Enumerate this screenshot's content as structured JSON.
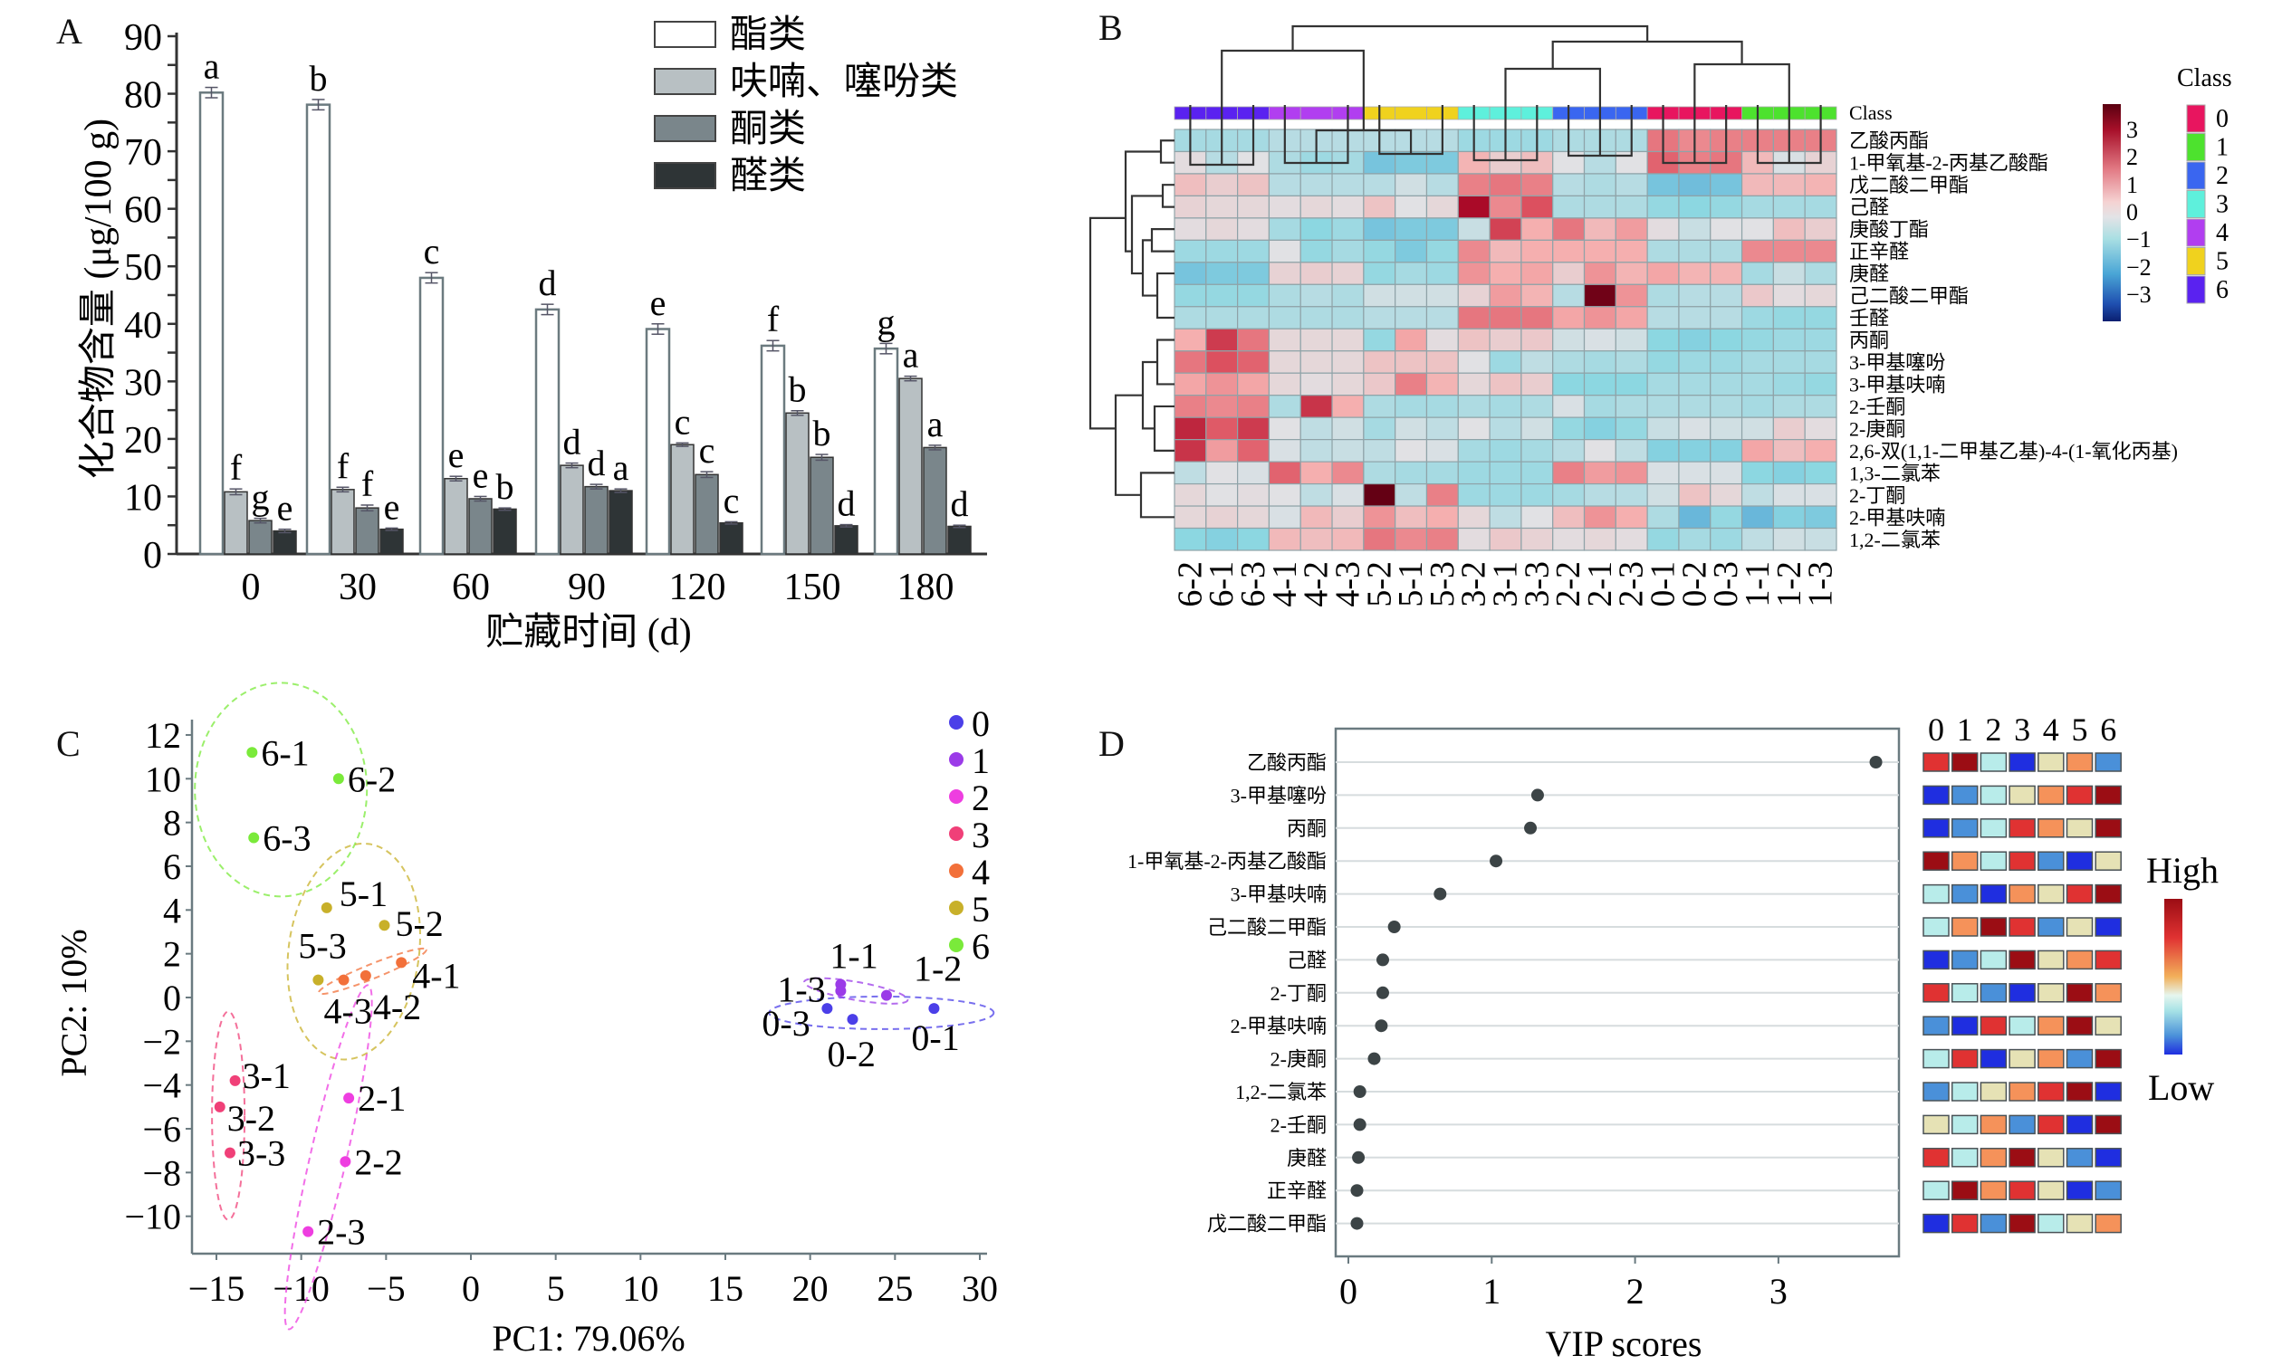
{
  "panels": {
    "A": "A",
    "B": "B",
    "C": "C",
    "D": "D"
  },
  "chart_data": [
    {
      "panel": "A",
      "type": "bar",
      "ylabel": "化合物含量 (μg/100 g)",
      "xlabel": "贮藏时间 (d)",
      "ylim": [
        0,
        90
      ],
      "yticks": [
        0,
        10,
        20,
        30,
        40,
        50,
        60,
        70,
        80,
        90
      ],
      "categories": [
        "0",
        "30",
        "60",
        "90",
        "120",
        "150",
        "180"
      ],
      "legend_position": "top-right",
      "series": [
        {
          "name": "酯类",
          "color": "#ffffff",
          "values": [
            80.2,
            78.1,
            48.0,
            42.5,
            39.1,
            36.2,
            35.7
          ],
          "errors": [
            0.9,
            0.9,
            0.9,
            0.9,
            0.9,
            0.9,
            0.9
          ],
          "letters": [
            "a",
            "b",
            "c",
            "d",
            "e",
            "f",
            "g"
          ]
        },
        {
          "name": "呋喃、噻吩类",
          "color": "#b8c0c3",
          "values": [
            10.8,
            11.2,
            13.1,
            15.4,
            19.0,
            24.5,
            30.5
          ],
          "errors": [
            0.5,
            0.4,
            0.4,
            0.4,
            0.3,
            0.4,
            0.4
          ],
          "letters": [
            "f",
            "f",
            "e",
            "d",
            "c",
            "b",
            "a"
          ]
        },
        {
          "name": "酮类",
          "color": "#7a868b",
          "values": [
            5.8,
            8.0,
            9.6,
            11.7,
            13.8,
            16.8,
            18.5
          ],
          "errors": [
            0.4,
            0.5,
            0.4,
            0.4,
            0.5,
            0.5,
            0.4
          ],
          "letters": [
            "g",
            "f",
            "e",
            "d",
            "c",
            "b",
            "a"
          ]
        },
        {
          "name": "醛类",
          "color": "#2e3436",
          "values": [
            4.0,
            4.3,
            7.8,
            11.0,
            5.4,
            4.9,
            4.8
          ],
          "errors": [
            0.3,
            0.2,
            0.2,
            0.3,
            0.2,
            0.2,
            0.2
          ],
          "letters": [
            "e",
            "e",
            "b",
            "a",
            "c",
            "d",
            "d"
          ]
        }
      ]
    },
    {
      "panel": "B",
      "type": "heatmap",
      "title": "",
      "class_label": "Class",
      "legend_title": "Class",
      "colorbar_ticks": [
        3,
        2,
        1,
        0,
        -1,
        -2,
        -3
      ],
      "classes": [
        {
          "label": "0",
          "color": "#e8155f"
        },
        {
          "label": "1",
          "color": "#4de22e"
        },
        {
          "label": "2",
          "color": "#3a66f0"
        },
        {
          "label": "3",
          "color": "#5ef0dc"
        },
        {
          "label": "4",
          "color": "#b13ef0"
        },
        {
          "label": "5",
          "color": "#f0d21e"
        },
        {
          "label": "6",
          "color": "#5a22f0"
        }
      ],
      "columns": [
        "6-2",
        "6-1",
        "6-3",
        "4-1",
        "4-2",
        "4-3",
        "5-2",
        "5-1",
        "5-3",
        "3-2",
        "3-1",
        "3-3",
        "2-2",
        "2-1",
        "2-3",
        "0-1",
        "0-2",
        "0-3",
        "1-1",
        "1-2",
        "1-3"
      ],
      "rows": [
        "乙酸丙酯",
        "1-甲氧基-2-丙基乙酸酯",
        "戊二酸二甲酯",
        "己醛",
        "庚酸丁酯",
        "正辛醛",
        "庚醛",
        "己二酸二甲酯",
        "壬醛",
        "丙酮",
        "3-甲基噻吩",
        "3-甲基呋喃",
        "2-壬酮",
        "2-庚酮",
        "2,6-双(1,1-二甲基乙基)-4-(1-氧化丙基)",
        "1,3-二氯苯",
        "2-丁酮",
        "2-甲基呋喃",
        "1,2-二氯苯"
      ],
      "values": [
        [
          -0.7,
          -0.7,
          -0.7,
          -0.5,
          -0.5,
          -0.5,
          -0.5,
          -0.5,
          -0.5,
          -0.8,
          -0.8,
          -0.8,
          -0.6,
          -0.6,
          -0.6,
          1.6,
          1.4,
          1.5,
          1.5,
          1.5,
          1.5
        ],
        [
          0.1,
          -0.5,
          0.0,
          -0.6,
          -0.8,
          -0.7,
          -1.3,
          -1.2,
          -1.2,
          0.9,
          0.4,
          0.7,
          0.0,
          -0.5,
          0.0,
          1.8,
          1.5,
          1.6,
          0.8,
          -0.1,
          0.3
        ],
        [
          0.7,
          0.4,
          0.6,
          -0.5,
          -0.5,
          -0.5,
          -0.5,
          -0.2,
          -0.5,
          1.5,
          1.6,
          1.5,
          -0.5,
          -0.6,
          -0.5,
          -1.3,
          -1.4,
          -1.3,
          0.8,
          0.8,
          0.9
        ],
        [
          0.3,
          0.2,
          0.2,
          0.1,
          0.2,
          0.1,
          0.6,
          0.0,
          0.2,
          3.0,
          1.4,
          2.0,
          -0.6,
          -0.6,
          -0.6,
          -0.9,
          -1.0,
          -0.9,
          -0.7,
          -0.7,
          -0.7
        ],
        [
          0.1,
          0.2,
          0.1,
          -0.7,
          -1.0,
          -0.8,
          -1.3,
          -1.2,
          -1.2,
          -0.3,
          2.2,
          1.0,
          1.6,
          0.8,
          1.2,
          0.1,
          -0.3,
          0.0,
          0.0,
          0.7,
          0.4
        ],
        [
          -0.8,
          -0.8,
          -0.8,
          0.0,
          -0.9,
          -0.7,
          -0.9,
          -1.2,
          -0.9,
          1.4,
          0.8,
          1.0,
          1.0,
          1.0,
          1.0,
          -0.6,
          -0.6,
          -0.6,
          1.4,
          1.4,
          1.4
        ],
        [
          -1.3,
          -1.2,
          -1.2,
          0.3,
          0.4,
          0.3,
          -0.9,
          -0.7,
          -0.8,
          1.3,
          1.0,
          1.1,
          0.4,
          1.3,
          0.9,
          1.1,
          0.9,
          0.9,
          -0.7,
          -0.3,
          -0.6
        ],
        [
          -0.9,
          -0.9,
          -0.9,
          -0.6,
          -0.5,
          -0.6,
          -0.2,
          -0.2,
          -0.2,
          0.3,
          1.2,
          0.9,
          -0.5,
          3.5,
          1.3,
          -0.6,
          -0.5,
          -0.5,
          0.5,
          0.1,
          0.2
        ],
        [
          -0.6,
          -0.6,
          -0.6,
          -0.6,
          -0.6,
          -0.6,
          -0.5,
          -0.5,
          -0.5,
          1.6,
          1.6,
          1.6,
          1.1,
          1.3,
          1.1,
          -0.5,
          -0.5,
          -0.5,
          -0.8,
          -0.9,
          -0.9
        ],
        [
          1.0,
          2.3,
          1.6,
          0.2,
          0.2,
          0.2,
          -0.9,
          1.1,
          0.1,
          0.6,
          0.4,
          0.5,
          -0.2,
          -0.1,
          -0.2,
          -1.0,
          -1.1,
          -1.0,
          -0.9,
          -0.8,
          -0.8
        ],
        [
          1.6,
          2.0,
          1.8,
          0.2,
          0.2,
          0.2,
          0.6,
          0.6,
          0.6,
          0.0,
          -0.8,
          -0.4,
          -0.6,
          -0.7,
          -0.6,
          -0.9,
          -0.8,
          -0.8,
          -0.7,
          -0.7,
          -0.7
        ],
        [
          1.1,
          1.3,
          1.1,
          0.2,
          0.1,
          0.2,
          0.5,
          1.5,
          0.9,
          0.2,
          0.6,
          0.4,
          -1.0,
          -1.0,
          -1.0,
          -0.7,
          -0.7,
          -0.7,
          -0.7,
          -0.8,
          -0.9
        ],
        [
          1.5,
          1.4,
          1.5,
          -0.6,
          2.4,
          1.0,
          -0.6,
          -0.7,
          -0.7,
          -0.6,
          -0.7,
          -0.6,
          -0.1,
          -0.7,
          -0.6,
          -0.6,
          -0.6,
          -0.6,
          -0.7,
          -0.6,
          -0.6
        ],
        [
          2.6,
          1.9,
          2.3,
          0.0,
          -0.4,
          -0.2,
          -0.7,
          -0.2,
          -0.4,
          0.0,
          -0.5,
          -0.2,
          -0.9,
          -1.1,
          -0.9,
          -0.3,
          -0.1,
          -0.2,
          -0.2,
          0.4,
          0.1
        ],
        [
          2.4,
          1.2,
          1.8,
          -0.1,
          -0.4,
          -0.3,
          -0.4,
          0.0,
          -0.1,
          -0.7,
          -0.8,
          -0.7,
          -0.5,
          0.0,
          -0.4,
          -1.1,
          -1.1,
          -1.1,
          1.1,
          0.7,
          1.0
        ],
        [
          -0.4,
          0.0,
          -0.1,
          1.8,
          1.0,
          1.4,
          -0.6,
          -0.7,
          -0.7,
          -0.8,
          -0.8,
          -0.8,
          1.5,
          1.2,
          1.3,
          -0.1,
          -0.1,
          -0.1,
          -1.0,
          -1.1,
          -1.0
        ],
        [
          0.2,
          0.0,
          0.1,
          0.0,
          -0.4,
          -0.1,
          3.6,
          -0.4,
          1.5,
          -0.8,
          -0.8,
          -0.8,
          -0.7,
          -0.5,
          -0.5,
          -0.2,
          0.6,
          0.2,
          -0.4,
          -0.1,
          -0.1
        ],
        [
          0.2,
          0.3,
          0.2,
          -0.1,
          0.8,
          0.4,
          1.3,
          0.7,
          1.0,
          0.2,
          -0.4,
          0.0,
          0.7,
          1.3,
          1.0,
          -0.6,
          -1.5,
          -0.9,
          -1.5,
          -1.1,
          -1.2
        ],
        [
          -1.0,
          -1.1,
          -1.0,
          0.8,
          0.7,
          0.8,
          1.6,
          1.4,
          1.5,
          0.1,
          0.5,
          0.3,
          0.1,
          0.2,
          0.1,
          -0.9,
          -0.7,
          -0.8,
          -0.4,
          -0.2,
          -0.3
        ]
      ]
    },
    {
      "panel": "C",
      "type": "scatter",
      "xlabel": "PC1: 79.06%",
      "ylabel": "PC2: 10%",
      "xlim": [
        -16.5,
        30
      ],
      "ylim": [
        -12,
        12.5
      ],
      "xticks": [
        -15,
        -10,
        -5,
        0,
        5,
        10,
        15,
        20,
        25,
        30
      ],
      "yticks": [
        12,
        10,
        8,
        6,
        4,
        2,
        0,
        -2,
        -4,
        -6,
        -8,
        -10
      ],
      "legend_position": "top-right",
      "groups": [
        {
          "name": "0",
          "color": "#4b3fe8",
          "points": [
            {
              "label": "0-1",
              "x": 27.3,
              "y": -0.5
            },
            {
              "label": "0-2",
              "x": 22.5,
              "y": -1.0
            },
            {
              "label": "0-3",
              "x": 21.0,
              "y": -0.5
            }
          ]
        },
        {
          "name": "1",
          "color": "#9b3be8",
          "points": [
            {
              "label": "1-1",
              "x": 21.8,
              "y": 0.6
            },
            {
              "label": "1-2",
              "x": 24.5,
              "y": 0.1
            },
            {
              "label": "1-3",
              "x": 21.8,
              "y": 0.3
            }
          ]
        },
        {
          "name": "2",
          "color": "#ee3ee0",
          "points": [
            {
              "label": "2-1",
              "x": -7.2,
              "y": -4.6
            },
            {
              "label": "2-2",
              "x": -7.4,
              "y": -7.5
            },
            {
              "label": "2-3",
              "x": -9.6,
              "y": -10.7
            }
          ]
        },
        {
          "name": "3",
          "color": "#f04078",
          "points": [
            {
              "label": "3-1",
              "x": -13.9,
              "y": -3.8
            },
            {
              "label": "3-2",
              "x": -14.8,
              "y": -5.0
            },
            {
              "label": "3-3",
              "x": -14.2,
              "y": -7.1
            }
          ]
        },
        {
          "name": "4",
          "color": "#f2703a",
          "points": [
            {
              "label": "4-1",
              "x": -4.1,
              "y": 1.6
            },
            {
              "label": "4-2",
              "x": -6.2,
              "y": 1.0
            },
            {
              "label": "4-3",
              "x": -7.5,
              "y": 0.8
            }
          ]
        },
        {
          "name": "5",
          "color": "#c8b02a",
          "points": [
            {
              "label": "5-1",
              "x": -8.5,
              "y": 4.1
            },
            {
              "label": "5-2",
              "x": -5.1,
              "y": 3.3
            },
            {
              "label": "5-3",
              "x": -9.0,
              "y": 0.8
            }
          ]
        },
        {
          "name": "6",
          "color": "#7aea3a",
          "points": [
            {
              "label": "6-1",
              "x": -12.9,
              "y": 11.2
            },
            {
              "label": "6-2",
              "x": -7.8,
              "y": 10.0
            },
            {
              "label": "6-3",
              "x": -12.8,
              "y": 7.3
            }
          ]
        }
      ]
    },
    {
      "panel": "D",
      "type": "scatter",
      "xlabel": "VIP scores",
      "xlim": [
        -0.08,
        3.85
      ],
      "xticks": [
        0,
        1,
        2,
        3
      ],
      "compounds": [
        "乙酸丙酯",
        "3-甲基噻吩",
        "丙酮",
        "1-甲氧基-2-丙基乙酸酯",
        "3-甲基呋喃",
        "己二酸二甲酯",
        "己醛",
        "2-丁酮",
        "2-甲基呋喃",
        "2-庚酮",
        "1,2-二氯苯",
        "2-壬酮",
        "庚醛",
        "正辛醛",
        "戊二酸二甲酯"
      ],
      "vip": [
        3.68,
        1.32,
        1.27,
        1.03,
        0.64,
        0.32,
        0.24,
        0.24,
        0.23,
        0.18,
        0.08,
        0.08,
        0.07,
        0.06,
        0.06
      ],
      "class_columns": [
        "0",
        "1",
        "2",
        "3",
        "4",
        "5",
        "6"
      ],
      "scale_high": "High",
      "scale_low": "Low",
      "relative_levels_1_low_7_high": [
        [
          6,
          7,
          3,
          1,
          4,
          5,
          2
        ],
        [
          1,
          2,
          3,
          4,
          5,
          6,
          7
        ],
        [
          1,
          2,
          3,
          6,
          5,
          4,
          7
        ],
        [
          7,
          5,
          3,
          6,
          2,
          1,
          4
        ],
        [
          3,
          2,
          1,
          5,
          4,
          6,
          7
        ],
        [
          3,
          5,
          7,
          6,
          2,
          4,
          1
        ],
        [
          1,
          2,
          3,
          7,
          4,
          5,
          6
        ],
        [
          6,
          3,
          2,
          1,
          4,
          7,
          5
        ],
        [
          2,
          1,
          6,
          3,
          5,
          7,
          4
        ],
        [
          3,
          6,
          1,
          4,
          5,
          2,
          7
        ],
        [
          2,
          3,
          4,
          5,
          6,
          7,
          1
        ],
        [
          4,
          3,
          5,
          2,
          6,
          1,
          7
        ],
        [
          6,
          3,
          5,
          7,
          4,
          2,
          1
        ],
        [
          3,
          7,
          5,
          6,
          4,
          1,
          2
        ],
        [
          1,
          6,
          2,
          7,
          3,
          4,
          5
        ]
      ],
      "level_colors": [
        "#1f2ee0",
        "#4a90d9",
        "#b8ecea",
        "#e6e2b5",
        "#f5925a",
        "#e03232",
        "#9b0d14"
      ]
    }
  ]
}
